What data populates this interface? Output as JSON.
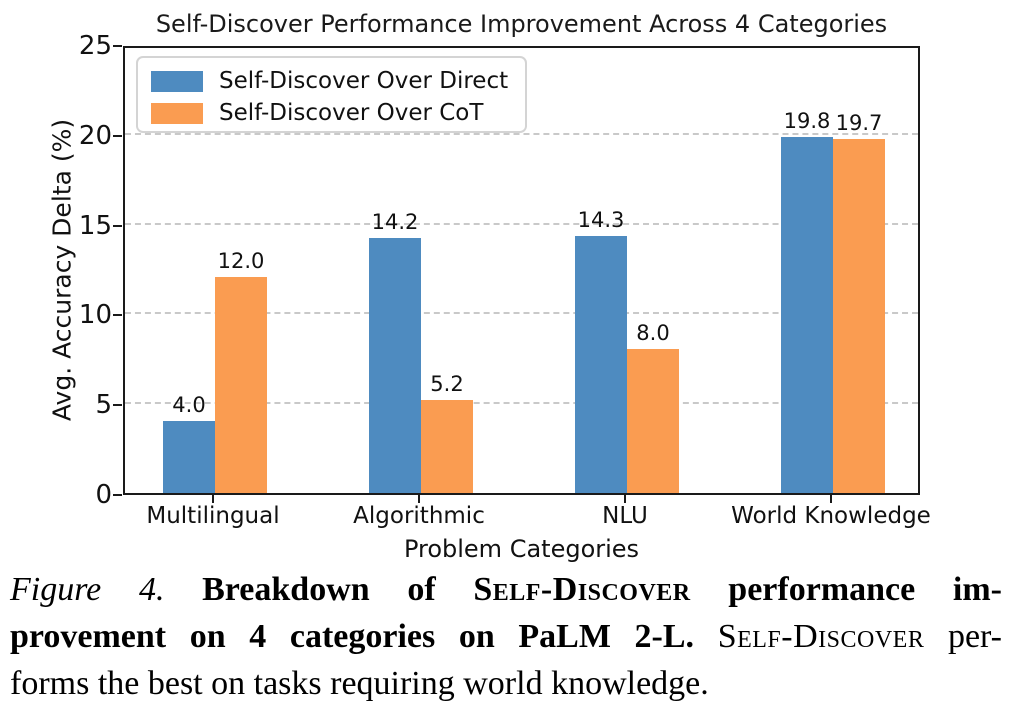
{
  "chart_data": {
    "type": "bar",
    "title": "Self-Discover Performance Improvement Across 4 Categories",
    "xlabel": "Problem Categories",
    "ylabel": "Avg. Accuracy Delta (%)",
    "categories": [
      "Multilingual",
      "Algorithmic",
      "NLU",
      "World Knowledge"
    ],
    "series": [
      {
        "name": "Self-Discover Over Direct",
        "color": "#4e8bc0",
        "values": [
          4.0,
          14.2,
          14.3,
          19.8
        ]
      },
      {
        "name": "Self-Discover Over CoT",
        "color": "#fa9c51",
        "values": [
          12.0,
          5.2,
          8.0,
          19.7
        ]
      }
    ],
    "value_labels": [
      [
        "4.0",
        "14.2",
        "14.3",
        "19.8"
      ],
      [
        "12.0",
        "5.2",
        "8.0",
        "19.7"
      ]
    ],
    "ylim": [
      0,
      25
    ],
    "yticks": [
      0,
      5,
      10,
      15,
      20,
      25
    ],
    "grid": "horizontal-dashed",
    "legend_position": "upper-left",
    "colors": {
      "axis": "#1a1a1a",
      "grid": "#c9c9c9",
      "text": "#111111"
    }
  },
  "caption": {
    "lines": [
      {
        "justify": true,
        "segments": [
          {
            "text": "Figure 4.",
            "style": "italic"
          },
          {
            "text": " ",
            "style": "normal"
          },
          {
            "text": "Breakdown of ",
            "style": "bold"
          },
          {
            "text": "Self-Discover",
            "style": "bold-smallcaps"
          },
          {
            "text": " performance im-",
            "style": "bold"
          }
        ]
      },
      {
        "justify": true,
        "segments": [
          {
            "text": "provement on 4 categories on PaLM 2-L.",
            "style": "bold"
          },
          {
            "text": " ",
            "style": "normal"
          },
          {
            "text": "Self-Discover",
            "style": "smallcaps"
          },
          {
            "text": " per-",
            "style": "normal"
          }
        ]
      },
      {
        "justify": false,
        "segments": [
          {
            "text": "forms the best on tasks requiring world knowledge.",
            "style": "normal"
          }
        ]
      }
    ]
  }
}
